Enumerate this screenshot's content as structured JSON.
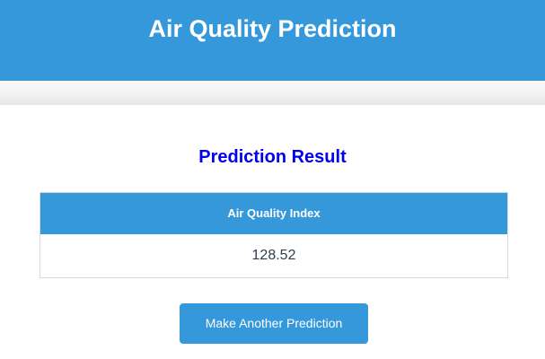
{
  "header": {
    "title": "Air Quality Prediction"
  },
  "result": {
    "heading": "Prediction Result",
    "table": {
      "column_header": "Air Quality Index",
      "value": "128.52"
    }
  },
  "actions": {
    "make_another_label": "Make Another Prediction"
  },
  "colors": {
    "header_bg": "#3498db",
    "heading_text": "#0000ee",
    "button_bg": "#3498db",
    "value_text": "#2c3e50"
  }
}
